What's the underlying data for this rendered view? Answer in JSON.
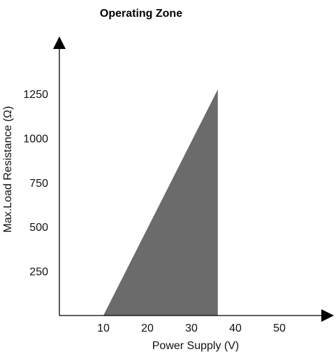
{
  "chart_data": {
    "type": "area",
    "title": "Operating Zone",
    "xlabel": "Power Supply (V)",
    "ylabel": "Max.Load Resistance (Ω)",
    "x_ticks": [
      10,
      20,
      30,
      40,
      50
    ],
    "y_ticks": [
      250,
      500,
      750,
      1000,
      1250
    ],
    "xlim": [
      0,
      60
    ],
    "ylim": [
      0,
      1500
    ],
    "grid": false,
    "region": {
      "name": "",
      "color": "#6b6b6b",
      "points": [
        {
          "x": 10,
          "y": 0
        },
        {
          "x": 36,
          "y": 1275
        },
        {
          "x": 36,
          "y": 0
        }
      ]
    },
    "axis_color": "#000000"
  }
}
